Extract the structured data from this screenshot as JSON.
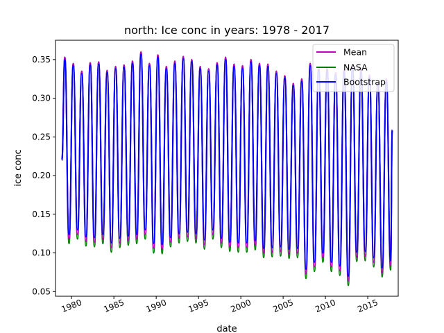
{
  "chart_data": {
    "type": "line",
    "title": "north: Ice conc in years: 1978 - 2017",
    "xlabel": "date",
    "ylabel": "ice conc",
    "xlim": [
      1978.1,
      2018.6
    ],
    "ylim": [
      0.044,
      0.375
    ],
    "x_ticks": [
      1980,
      1985,
      1990,
      1995,
      2000,
      2005,
      2010,
      2015
    ],
    "x_tick_labels": [
      "1980",
      "1985",
      "1990",
      "1995",
      "2000",
      "2005",
      "2010",
      "2015"
    ],
    "y_ticks": [
      0.05,
      0.1,
      0.15,
      0.2,
      0.25,
      0.3,
      0.35
    ],
    "y_tick_labels": [
      "0.05",
      "0.10",
      "0.15",
      "0.20",
      "0.25",
      "0.30",
      "0.35"
    ],
    "legend_position": "top-right",
    "grid": false,
    "series": [
      {
        "name": "Mean",
        "color": "#bf00bf"
      },
      {
        "name": "NASA",
        "color": "#008000"
      },
      {
        "name": "Bootstrap",
        "color": "#0000ff"
      }
    ],
    "start": {
      "x": 1978.85,
      "y": 0.22
    },
    "end": {
      "x": 2017.9,
      "y": 0.259
    },
    "cycles": [
      {
        "year": 1979,
        "max": 0.353,
        "min": 0.112
      },
      {
        "year": 1980,
        "max": 0.345,
        "min": 0.118
      },
      {
        "year": 1981,
        "max": 0.335,
        "min": 0.109
      },
      {
        "year": 1982,
        "max": 0.346,
        "min": 0.108
      },
      {
        "year": 1983,
        "max": 0.347,
        "min": 0.112
      },
      {
        "year": 1984,
        "max": 0.336,
        "min": 0.101
      },
      {
        "year": 1985,
        "max": 0.341,
        "min": 0.107
      },
      {
        "year": 1986,
        "max": 0.343,
        "min": 0.11
      },
      {
        "year": 1987,
        "max": 0.348,
        "min": 0.112
      },
      {
        "year": 1988,
        "max": 0.36,
        "min": 0.118
      },
      {
        "year": 1989,
        "max": 0.345,
        "min": 0.1
      },
      {
        "year": 1990,
        "max": 0.356,
        "min": 0.099
      },
      {
        "year": 1991,
        "max": 0.341,
        "min": 0.108
      },
      {
        "year": 1992,
        "max": 0.348,
        "min": 0.113
      },
      {
        "year": 1993,
        "max": 0.354,
        "min": 0.115
      },
      {
        "year": 1994,
        "max": 0.35,
        "min": 0.113
      },
      {
        "year": 1995,
        "max": 0.341,
        "min": 0.105
      },
      {
        "year": 1996,
        "max": 0.338,
        "min": 0.118
      },
      {
        "year": 1997,
        "max": 0.346,
        "min": 0.107
      },
      {
        "year": 1998,
        "max": 0.353,
        "min": 0.102
      },
      {
        "year": 1999,
        "max": 0.344,
        "min": 0.101
      },
      {
        "year": 2000,
        "max": 0.342,
        "min": 0.101
      },
      {
        "year": 2001,
        "max": 0.35,
        "min": 0.104
      },
      {
        "year": 2002,
        "max": 0.345,
        "min": 0.094
      },
      {
        "year": 2003,
        "max": 0.344,
        "min": 0.095
      },
      {
        "year": 2004,
        "max": 0.335,
        "min": 0.096
      },
      {
        "year": 2005,
        "max": 0.329,
        "min": 0.093
      },
      {
        "year": 2006,
        "max": 0.319,
        "min": 0.094
      },
      {
        "year": 2007,
        "max": 0.325,
        "min": 0.067
      },
      {
        "year": 2008,
        "max": 0.345,
        "min": 0.076
      },
      {
        "year": 2009,
        "max": 0.34,
        "min": 0.088
      },
      {
        "year": 2010,
        "max": 0.34,
        "min": 0.076
      },
      {
        "year": 2011,
        "max": 0.333,
        "min": 0.071
      },
      {
        "year": 2012,
        "max": 0.337,
        "min": 0.058
      },
      {
        "year": 2013,
        "max": 0.342,
        "min": 0.089
      },
      {
        "year": 2014,
        "max": 0.337,
        "min": 0.09
      },
      {
        "year": 2015,
        "max": 0.33,
        "min": 0.082
      },
      {
        "year": 2016,
        "max": 0.321,
        "min": 0.069
      },
      {
        "year": 2017,
        "max": 0.325,
        "min": 0.078
      }
    ]
  }
}
